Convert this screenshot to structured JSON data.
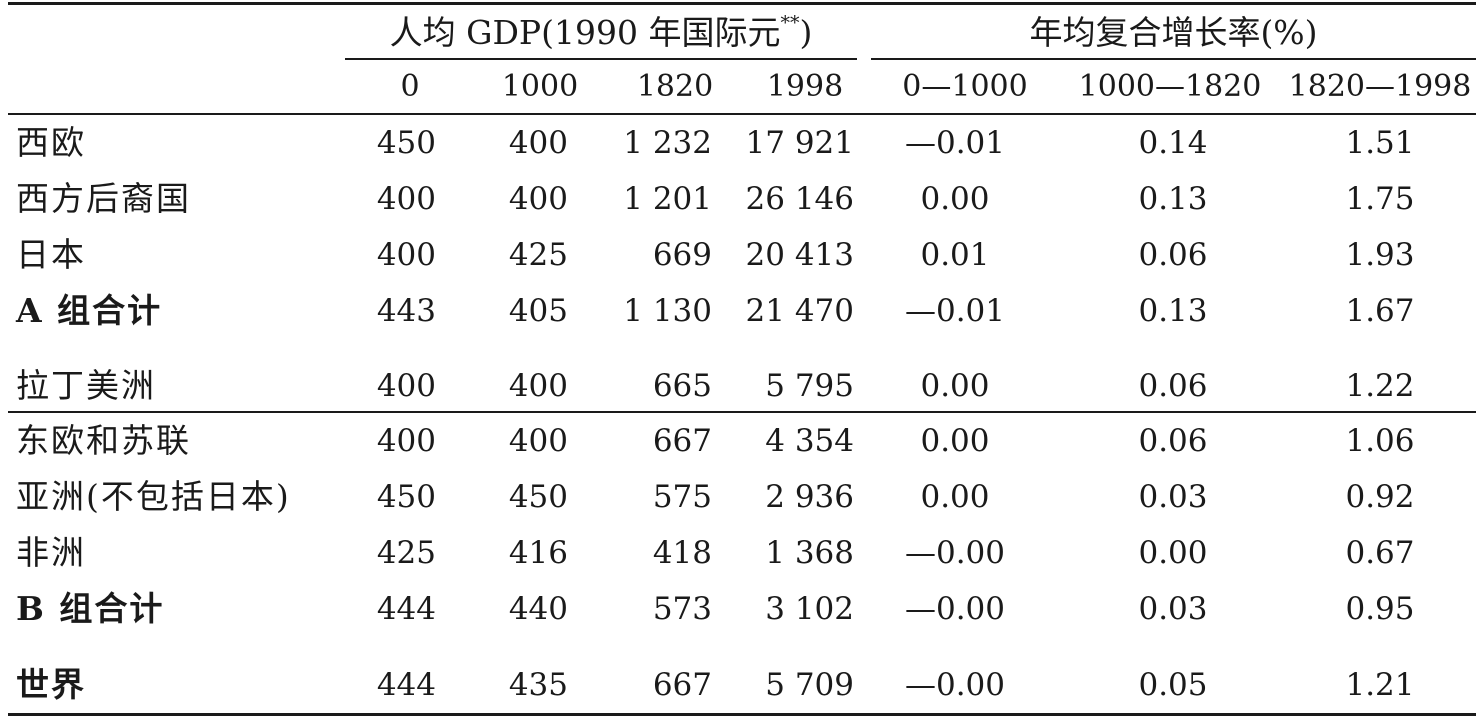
{
  "header": {
    "gdp_group_title": "人均 GDP(1990 年国际元",
    "gdp_group_mark": "**",
    "gdp_group_close": ")",
    "growth_group_title": "年均复合增长率(%)"
  },
  "columns": [
    "0",
    "1000",
    "1820",
    "1998",
    "0—1000",
    "1000—1820",
    "1820—1998"
  ],
  "rows": [
    {
      "label": "西欧",
      "bold": false,
      "values": [
        "450",
        "400",
        "1 232",
        "17 921",
        "—0.01",
        "0.14",
        "1.51"
      ]
    },
    {
      "label": "西方后裔国",
      "bold": false,
      "values": [
        "400",
        "400",
        "1 201",
        "26 146",
        "0.00",
        "0.13",
        "1.75"
      ]
    },
    {
      "label": "日本",
      "bold": false,
      "values": [
        "400",
        "425",
        "669",
        "20 413",
        "0.01",
        "0.06",
        "1.93"
      ]
    },
    {
      "label": "A 组合计",
      "bold": true,
      "values": [
        "443",
        "405",
        "1 130",
        "21 470",
        "—0.01",
        "0.13",
        "1.67"
      ]
    },
    {
      "label": "拉丁美洲",
      "bold": false,
      "values": [
        "400",
        "400",
        "665",
        "5 795",
        "0.00",
        "0.06",
        "1.22"
      ]
    },
    {
      "label": "东欧和苏联",
      "bold": false,
      "values": [
        "400",
        "400",
        "667",
        "4 354",
        "0.00",
        "0.06",
        "1.06"
      ]
    },
    {
      "label": "亚洲(不包括日本)",
      "bold": false,
      "values": [
        "450",
        "450",
        "575",
        "2 936",
        "0.00",
        "0.03",
        "0.92"
      ]
    },
    {
      "label": "非洲",
      "bold": false,
      "values": [
        "425",
        "416",
        "418",
        "1 368",
        "—0.00",
        "0.00",
        "0.67"
      ]
    },
    {
      "label": "B 组合计",
      "bold": true,
      "values": [
        "444",
        "440",
        "573",
        "3 102",
        "—0.00",
        "0.03",
        "0.95"
      ]
    },
    {
      "label": "世界",
      "bold": true,
      "values": [
        "444",
        "435",
        "667",
        "5 709",
        "—0.00",
        "0.05",
        "1.21"
      ]
    }
  ]
}
